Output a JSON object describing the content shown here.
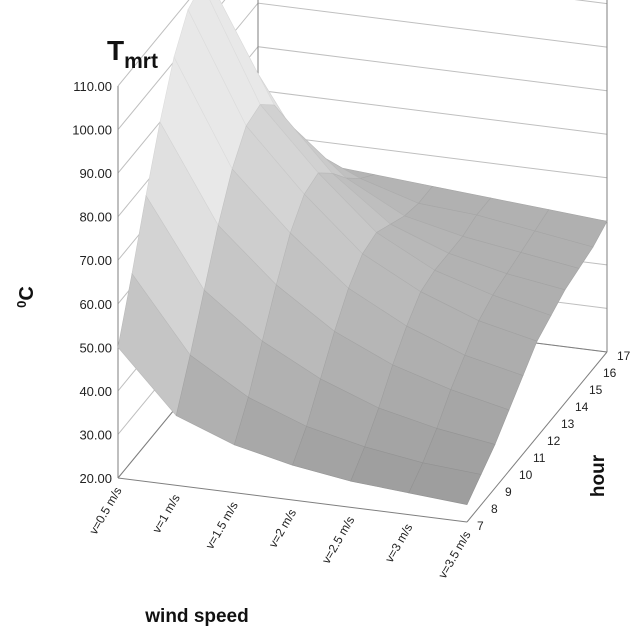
{
  "chart_data": {
    "type": "surface",
    "title_main": "T",
    "title_sub": "mrt",
    "zlabel": "0C",
    "zlabel_sup": "0",
    "zlabel_main": "C",
    "xlabel": "wind speed",
    "ylabel": "hour",
    "zlim": [
      20,
      110
    ],
    "z_ticks": [
      "20.00",
      "30.00",
      "40.00",
      "50.00",
      "60.00",
      "70.00",
      "80.00",
      "90.00",
      "100.00",
      "110.00"
    ],
    "x_categories": [
      "v=0.5 m/s",
      "v=1 m/s",
      "v=1.5 m/s",
      "v=2 m/s",
      "v=2.5 m/s",
      "v=3 m/s",
      "v=3.5 m/s"
    ],
    "y_categories": [
      "7",
      "8",
      "9",
      "10",
      "11",
      "12",
      "13",
      "14",
      "15",
      "16",
      "17"
    ],
    "grid": true,
    "surface_color": "#8a8a8a",
    "values": [
      [
        50,
        63,
        77,
        90,
        101,
        108,
        110,
        104,
        92,
        76,
        60
      ],
      [
        36,
        46,
        57,
        68,
        77,
        83,
        84,
        80,
        72,
        63,
        55
      ],
      [
        31,
        38,
        47,
        56,
        64,
        69,
        70,
        66,
        61,
        57,
        54
      ],
      [
        28,
        33,
        40,
        47,
        53,
        57,
        58,
        56,
        54,
        53,
        53
      ],
      [
        26,
        30,
        35,
        41,
        46,
        50,
        51,
        51,
        51,
        52,
        52
      ],
      [
        25,
        28,
        32,
        37,
        41,
        45,
        47,
        48,
        49,
        50,
        51
      ],
      [
        24,
        27,
        30,
        34,
        38,
        42,
        44,
        46,
        47,
        48,
        50
      ]
    ]
  }
}
